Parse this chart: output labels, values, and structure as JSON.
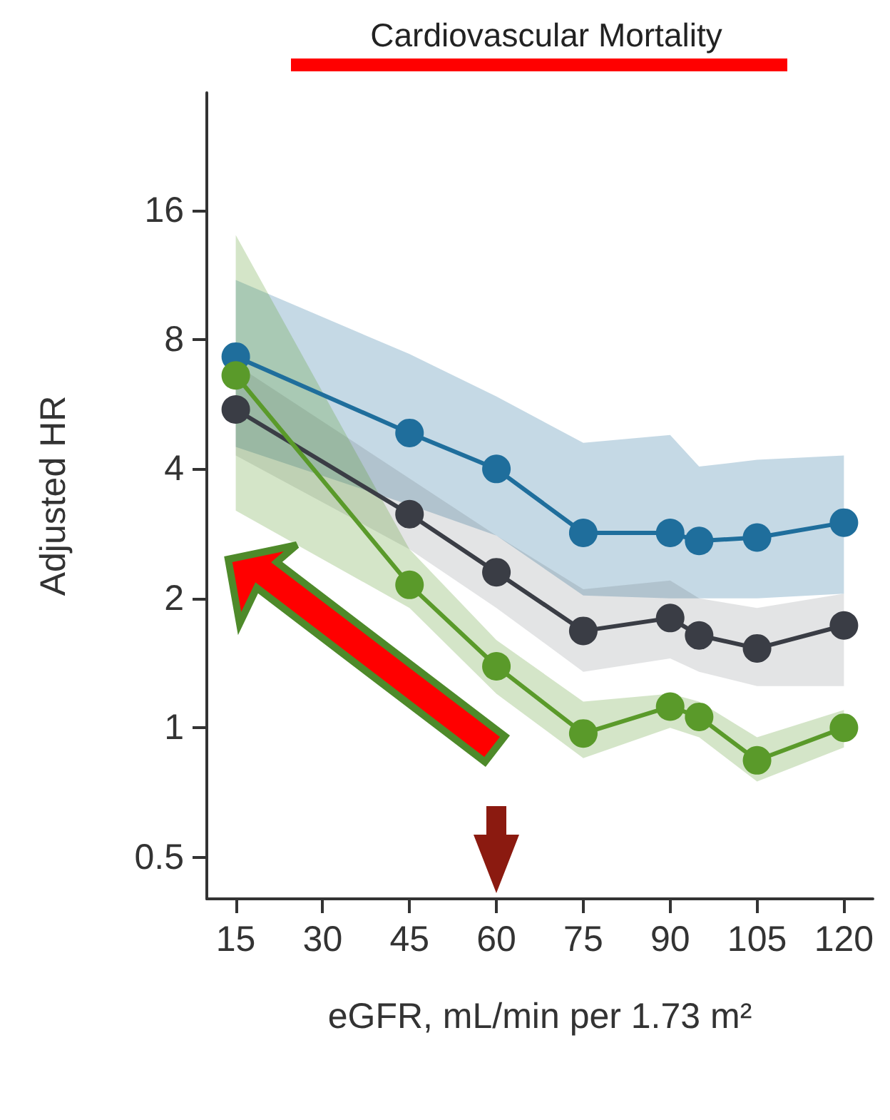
{
  "chart_data": {
    "type": "line",
    "title": "Cardiovascular Mortality",
    "xlabel": "eGFR, mL/min per 1.73 m²",
    "ylabel": "Adjusted HR",
    "x": [
      15,
      45,
      60,
      75,
      90,
      95,
      105,
      120
    ],
    "series": [
      {
        "color": "#1f6e9c",
        "values": [
          7.3,
          4.85,
          4.0,
          2.84,
          2.84,
          2.72,
          2.77,
          3.0
        ],
        "lower": [
          4.5,
          3.3,
          2.8,
          2.03,
          2.0,
          2.0,
          2.0,
          2.05
        ],
        "upper": [
          11,
          7.4,
          5.9,
          4.6,
          4.8,
          4.05,
          4.2,
          4.3
        ]
      },
      {
        "color": "#3a3d45",
        "values": [
          5.5,
          3.14,
          2.3,
          1.68,
          1.8,
          1.64,
          1.53,
          1.73
        ],
        "lower": [
          4.3,
          2.6,
          1.9,
          1.35,
          1.45,
          1.35,
          1.25,
          1.25
        ],
        "upper": [
          7,
          3.8,
          2.8,
          2.1,
          2.2,
          2.0,
          1.9,
          2.05
        ]
      },
      {
        "color": "#5a9a2a",
        "values": [
          6.6,
          2.15,
          1.39,
          0.97,
          1.12,
          1.06,
          0.84,
          1.0
        ],
        "lower": [
          3.2,
          1.9,
          1.2,
          0.85,
          1.0,
          0.95,
          0.75,
          0.9
        ],
        "upper": [
          14,
          2.6,
          1.6,
          1.15,
          1.2,
          1.15,
          0.95,
          1.1
        ]
      }
    ],
    "xlim": [
      10,
      125
    ],
    "xticks": [
      15,
      30,
      45,
      60,
      75,
      90,
      105,
      120
    ],
    "ylim": [
      0.4,
      30
    ],
    "yticks": [
      0.5,
      1,
      2,
      4,
      8,
      16
    ],
    "log": "y",
    "grid": false,
    "marker": "circle",
    "line_style": "solid"
  }
}
